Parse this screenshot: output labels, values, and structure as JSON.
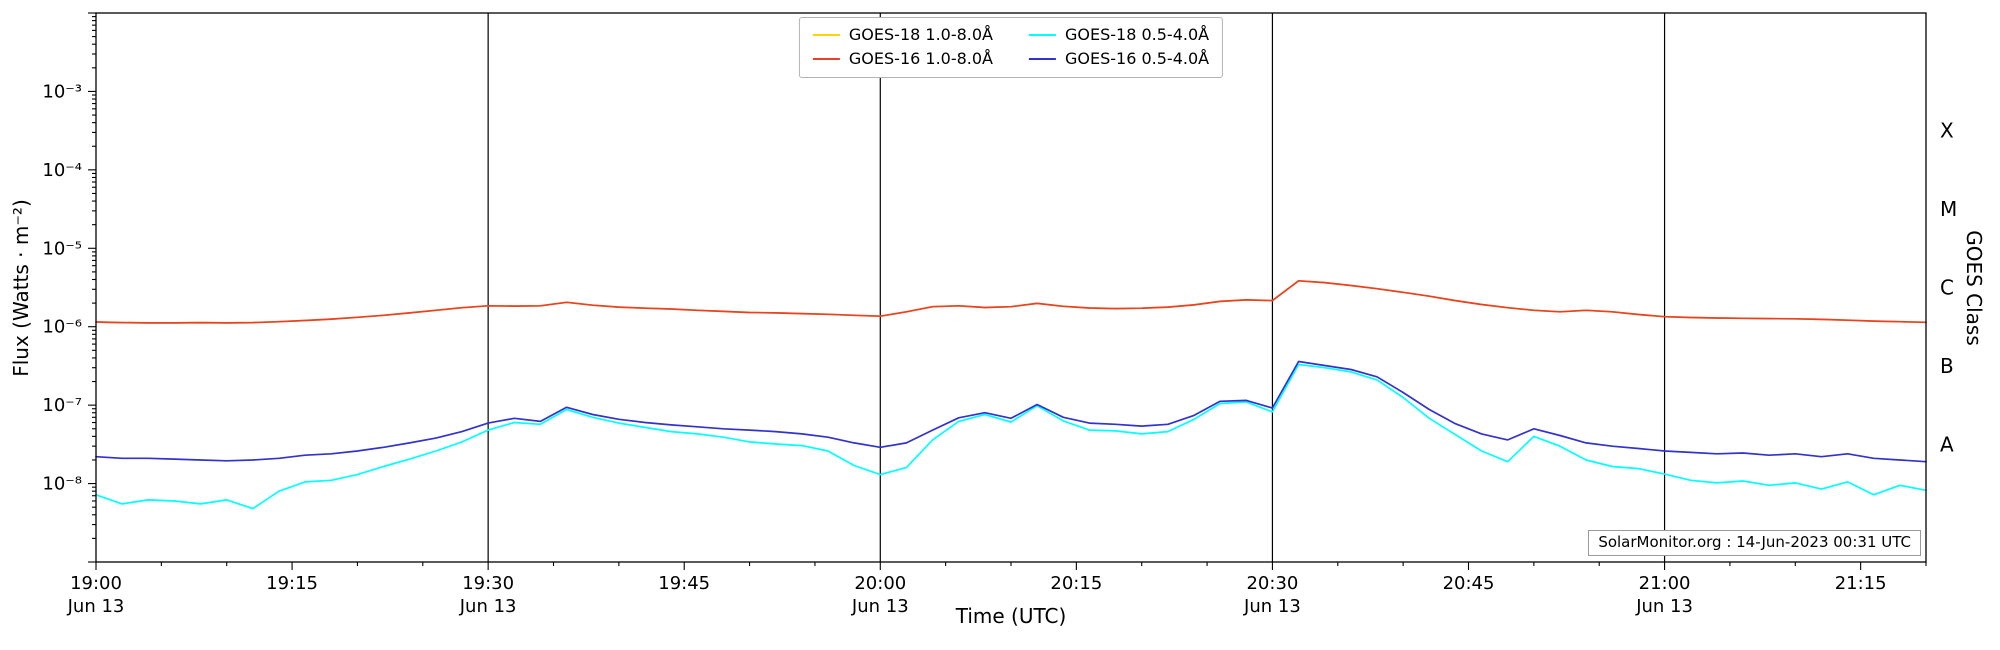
{
  "figure": {
    "annotation": "SolarMonitor.org : 14-Jun-2023 00:31 UTC",
    "background_color": "#ffffff"
  },
  "chart_data": {
    "type": "line",
    "title": "",
    "xlabel": "Time (UTC)",
    "ylabel": "Flux (Watts · m⁻²)",
    "ylabel_right": "GOES Class",
    "grid": "vertical-lines-at-half-hours-only",
    "legend_position": "top-center",
    "x_axis": {
      "unit": "minutes after 19:00 UTC on Jun 13",
      "lim": [
        0,
        140
      ],
      "minor_tick_every_min": 5,
      "major_ticks": [
        {
          "min": 0,
          "label": "19:00",
          "sublabel": "Jun 13"
        },
        {
          "min": 15,
          "label": "19:15",
          "sublabel": ""
        },
        {
          "min": 30,
          "label": "19:30",
          "sublabel": "Jun 13"
        },
        {
          "min": 45,
          "label": "19:45",
          "sublabel": ""
        },
        {
          "min": 60,
          "label": "20:00",
          "sublabel": "Jun 13"
        },
        {
          "min": 75,
          "label": "20:15",
          "sublabel": ""
        },
        {
          "min": 90,
          "label": "20:30",
          "sublabel": "Jun 13"
        },
        {
          "min": 105,
          "label": "20:45",
          "sublabel": ""
        },
        {
          "min": 120,
          "label": "21:00",
          "sublabel": "Jun 13"
        },
        {
          "min": 135,
          "label": "21:15",
          "sublabel": ""
        }
      ]
    },
    "y_axis": {
      "scale": "log",
      "lim": [
        1e-09,
        0.01
      ],
      "lim_log10": [
        -9,
        -2
      ],
      "major_ticks": [
        {
          "log10": -3,
          "label": "10⁻³"
        },
        {
          "log10": -4,
          "label": "10⁻⁴"
        },
        {
          "log10": -5,
          "label": "10⁻⁵"
        },
        {
          "log10": -6,
          "label": "10⁻⁶"
        },
        {
          "log10": -7,
          "label": "10⁻⁷"
        },
        {
          "log10": -8,
          "label": "10⁻⁸"
        }
      ]
    },
    "right_axis": {
      "label": "GOES Class",
      "class_labels": [
        {
          "label": "X",
          "at_log10": -3.5
        },
        {
          "label": "M",
          "at_log10": -4.5
        },
        {
          "label": "C",
          "at_log10": -5.5
        },
        {
          "label": "B",
          "at_log10": -6.5
        },
        {
          "label": "A",
          "at_log10": -7.5
        }
      ]
    },
    "vlines_min": [
      30,
      60,
      90,
      120
    ],
    "x_min": [
      0,
      2,
      4,
      6,
      8,
      10,
      12,
      14,
      16,
      18,
      20,
      22,
      24,
      26,
      28,
      30,
      32,
      34,
      36,
      38,
      40,
      42,
      44,
      46,
      48,
      50,
      52,
      54,
      56,
      58,
      60,
      62,
      64,
      66,
      68,
      70,
      72,
      74,
      76,
      78,
      80,
      82,
      84,
      86,
      88,
      90,
      92,
      94,
      96,
      98,
      100,
      102,
      104,
      106,
      108,
      110,
      112,
      114,
      116,
      118,
      120,
      122,
      124,
      126,
      128,
      130,
      132,
      134,
      136,
      138,
      140
    ],
    "series": [
      {
        "id": "goes-18-long",
        "name": "GOES-18 1.0-8.0Å",
        "color": "#ffd400",
        "values": [
          1.15e-06,
          1.13e-06,
          1.12e-06,
          1.12e-06,
          1.13e-06,
          1.12e-06,
          1.13e-06,
          1.16e-06,
          1.2e-06,
          1.25e-06,
          1.32e-06,
          1.4e-06,
          1.5e-06,
          1.62e-06,
          1.75e-06,
          1.85e-06,
          1.83e-06,
          1.85e-06,
          2.05e-06,
          1.88e-06,
          1.78e-06,
          1.72e-06,
          1.68e-06,
          1.62e-06,
          1.57e-06,
          1.52e-06,
          1.5e-06,
          1.47e-06,
          1.44e-06,
          1.4e-06,
          1.36e-06,
          1.55e-06,
          1.8e-06,
          1.85e-06,
          1.76e-06,
          1.8e-06,
          1.98e-06,
          1.82e-06,
          1.73e-06,
          1.7e-06,
          1.72e-06,
          1.78e-06,
          1.9e-06,
          2.1e-06,
          2.2e-06,
          2.15e-06,
          3.85e-06,
          3.65e-06,
          3.35e-06,
          3.05e-06,
          2.75e-06,
          2.45e-06,
          2.15e-06,
          1.92e-06,
          1.75e-06,
          1.62e-06,
          1.55e-06,
          1.62e-06,
          1.55e-06,
          1.43e-06,
          1.34e-06,
          1.31e-06,
          1.29e-06,
          1.28e-06,
          1.27e-06,
          1.26e-06,
          1.24e-06,
          1.21e-06,
          1.18e-06,
          1.16e-06,
          1.14e-06
        ]
      },
      {
        "id": "goes-16-long",
        "name": "GOES-16 1.0-8.0Å",
        "color": "#e8402a",
        "values": [
          1.15e-06,
          1.13e-06,
          1.12e-06,
          1.12e-06,
          1.13e-06,
          1.12e-06,
          1.13e-06,
          1.16e-06,
          1.2e-06,
          1.25e-06,
          1.32e-06,
          1.4e-06,
          1.5e-06,
          1.62e-06,
          1.75e-06,
          1.85e-06,
          1.83e-06,
          1.85e-06,
          2.05e-06,
          1.88e-06,
          1.78e-06,
          1.72e-06,
          1.68e-06,
          1.62e-06,
          1.57e-06,
          1.52e-06,
          1.5e-06,
          1.47e-06,
          1.44e-06,
          1.4e-06,
          1.36e-06,
          1.55e-06,
          1.8e-06,
          1.85e-06,
          1.76e-06,
          1.8e-06,
          1.98e-06,
          1.82e-06,
          1.73e-06,
          1.7e-06,
          1.72e-06,
          1.78e-06,
          1.9e-06,
          2.1e-06,
          2.2e-06,
          2.15e-06,
          3.85e-06,
          3.65e-06,
          3.35e-06,
          3.05e-06,
          2.75e-06,
          2.45e-06,
          2.15e-06,
          1.92e-06,
          1.75e-06,
          1.62e-06,
          1.55e-06,
          1.62e-06,
          1.55e-06,
          1.43e-06,
          1.34e-06,
          1.31e-06,
          1.29e-06,
          1.28e-06,
          1.27e-06,
          1.26e-06,
          1.24e-06,
          1.21e-06,
          1.18e-06,
          1.16e-06,
          1.14e-06
        ]
      },
      {
        "id": "goes-18-short",
        "name": "GOES-18 0.5-4.0Å",
        "color": "#00ffff",
        "values": [
          7.2e-09,
          5.5e-09,
          6.2e-09,
          6e-09,
          5.5e-09,
          6.2e-09,
          4.8e-09,
          8e-09,
          1.05e-08,
          1.1e-08,
          1.3e-08,
          1.65e-08,
          2.05e-08,
          2.6e-08,
          3.4e-08,
          4.8e-08,
          6e-08,
          5.7e-08,
          8.8e-08,
          7e-08,
          5.9e-08,
          5.2e-08,
          4.6e-08,
          4.3e-08,
          3.9e-08,
          3.4e-08,
          3.2e-08,
          3.05e-08,
          2.6e-08,
          1.7e-08,
          1.3e-08,
          1.6e-08,
          3.6e-08,
          6.2e-08,
          7.6e-08,
          6.1e-08,
          9.8e-08,
          6.3e-08,
          4.8e-08,
          4.7e-08,
          4.3e-08,
          4.6e-08,
          6.6e-08,
          1.05e-07,
          1.1e-07,
          8.2e-08,
          3.3e-07,
          3e-07,
          2.65e-07,
          2.1e-07,
          1.25e-07,
          6.8e-08,
          4.2e-08,
          2.6e-08,
          1.9e-08,
          4e-08,
          3e-08,
          2e-08,
          1.65e-08,
          1.55e-08,
          1.32e-08,
          1.1e-08,
          1.02e-08,
          1.08e-08,
          9.5e-09,
          1.02e-08,
          8.5e-09,
          1.05e-08,
          7.2e-09,
          9.5e-09,
          8.2e-09
        ]
      },
      {
        "id": "goes-16-short",
        "name": "GOES-16 0.5-4.0Å",
        "color": "#3232cd",
        "values": [
          2.2e-08,
          2.1e-08,
          2.1e-08,
          2.05e-08,
          2e-08,
          1.95e-08,
          2e-08,
          2.1e-08,
          2.3e-08,
          2.4e-08,
          2.6e-08,
          2.9e-08,
          3.3e-08,
          3.8e-08,
          4.6e-08,
          5.9e-08,
          6.8e-08,
          6.2e-08,
          9.4e-08,
          7.6e-08,
          6.6e-08,
          6e-08,
          5.6e-08,
          5.3e-08,
          5e-08,
          4.8e-08,
          4.6e-08,
          4.3e-08,
          3.9e-08,
          3.3e-08,
          2.9e-08,
          3.3e-08,
          4.8e-08,
          6.9e-08,
          8e-08,
          6.8e-08,
          1.02e-07,
          7e-08,
          5.9e-08,
          5.7e-08,
          5.4e-08,
          5.7e-08,
          7.4e-08,
          1.12e-07,
          1.15e-07,
          9.2e-08,
          3.6e-07,
          3.2e-07,
          2.85e-07,
          2.3e-07,
          1.45e-07,
          8.8e-08,
          5.8e-08,
          4.3e-08,
          3.6e-08,
          5e-08,
          4.1e-08,
          3.3e-08,
          3e-08,
          2.8e-08,
          2.6e-08,
          2.5e-08,
          2.4e-08,
          2.45e-08,
          2.3e-08,
          2.4e-08,
          2.2e-08,
          2.4e-08,
          2.1e-08,
          2e-08,
          1.9e-08
        ]
      }
    ],
    "annotation": "SolarMonitor.org : 14-Jun-2023 00:31 UTC"
  }
}
